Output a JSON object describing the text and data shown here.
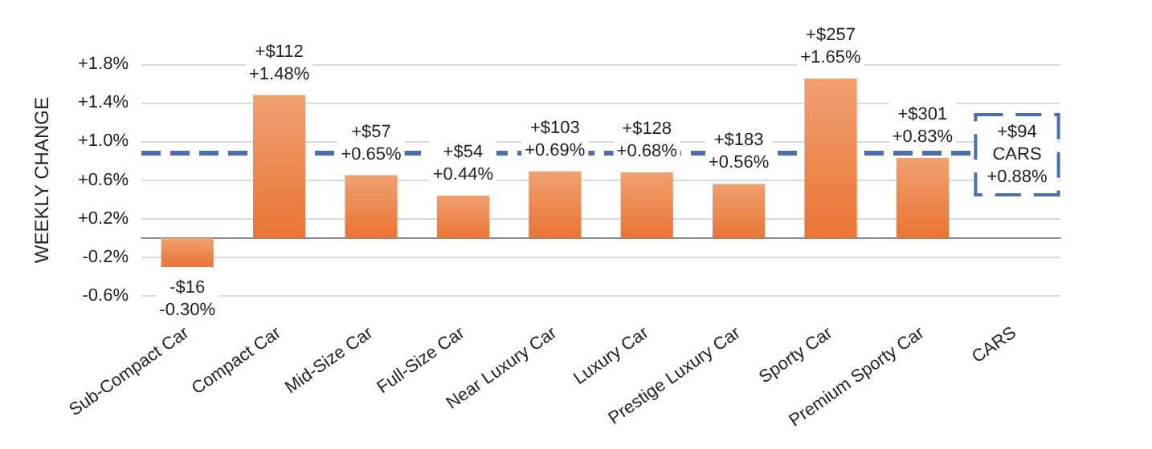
{
  "chart_data": {
    "type": "bar",
    "ylabel": "WEEKLY CHANGE",
    "categories": [
      "Sub-Compact Car",
      "Compact Car",
      "Mid-Size Car",
      "Full-Size Car",
      "Near Luxury Car",
      "Luxury Car",
      "Prestige Luxury Car",
      "Sporty Car",
      "Premium Sporty Car",
      "CARS"
    ],
    "values": [
      -0.3,
      1.48,
      0.65,
      0.44,
      0.69,
      0.68,
      0.56,
      1.65,
      0.83,
      null
    ],
    "value_labels": [
      "-$16\n-0.30%",
      "+$112\n+1.48%",
      "+$57\n+0.65%",
      "+$54\n+0.44%",
      "+$103\n+0.69%",
      "+$128\n+0.68%",
      "+$183\n+0.56%",
      "+$257\n+1.65%",
      "+$301\n+0.83%",
      null
    ],
    "color": "#ea7434",
    "ylim": [
      -0.6,
      1.8
    ],
    "yticks": [
      {
        "value": -0.6,
        "label": "-0.6%"
      },
      {
        "value": -0.2,
        "label": "-0.2%"
      },
      {
        "value": 0.2,
        "label": "+0.2%"
      },
      {
        "value": 0.6,
        "label": "+0.6%"
      },
      {
        "value": 1.0,
        "label": "+1.0%"
      },
      {
        "value": 1.4,
        "label": "+1.4%"
      },
      {
        "value": 1.8,
        "label": "+1.8%"
      }
    ],
    "grid": "y",
    "ref_lines": [
      {
        "axis": "y",
        "value": 0.88,
        "label": "+$94\nCARS\n+0.88%",
        "color": "#4a6eb0",
        "line_style": "dashed"
      }
    ]
  }
}
